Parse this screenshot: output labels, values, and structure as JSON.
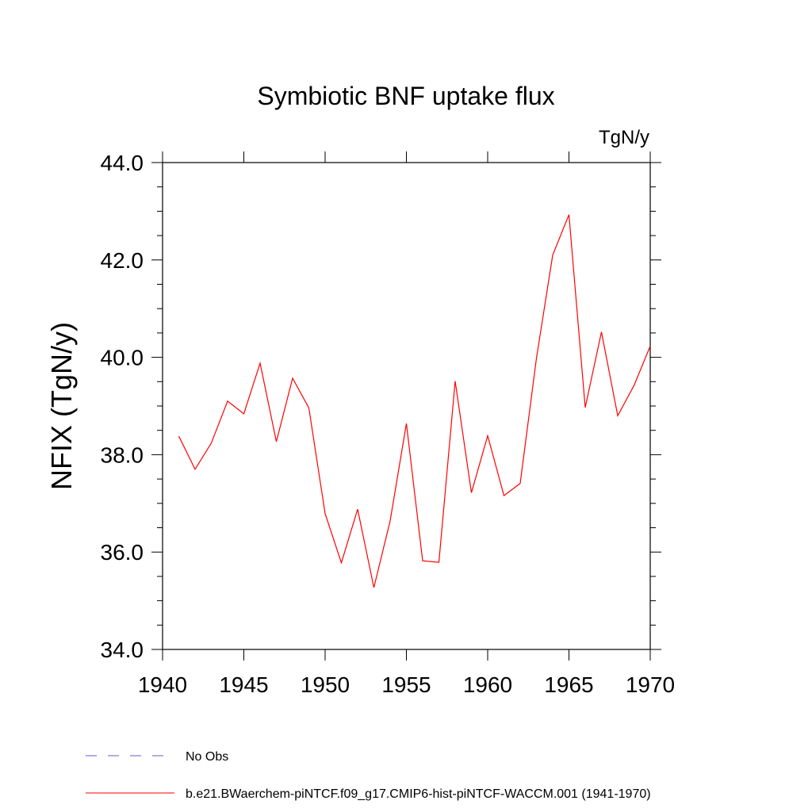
{
  "chart_data": {
    "type": "line",
    "title": "Symbiotic BNF uptake flux",
    "units": "TgN/y",
    "xlabel": "",
    "ylabel": "NFIX  (TgN/y)",
    "xlim": [
      1940,
      1970
    ],
    "ylim": [
      34.0,
      44.0
    ],
    "x_ticks": [
      1940,
      1945,
      1950,
      1955,
      1960,
      1965,
      1970
    ],
    "x_tick_labels": [
      "1940",
      "1945",
      "1950",
      "1955",
      "1960",
      "1965",
      "1970"
    ],
    "y_ticks": [
      34,
      36,
      38,
      40,
      42,
      44
    ],
    "y_tick_labels": [
      "34.0",
      "36.0",
      "38.0",
      "40.0",
      "42.0",
      "44.0"
    ],
    "grid": false,
    "legend_position": "bottom",
    "series": [
      {
        "name": "b.e21.BWaerchem-piNTCF.f09_g17.CMIP6-hist-piNTCF-WACCM.001 (1941-1970)",
        "color": "#ff0000",
        "style": "solid",
        "x": [
          1941,
          1942,
          1943,
          1944,
          1945,
          1946,
          1947,
          1948,
          1949,
          1950,
          1951,
          1952,
          1953,
          1954,
          1955,
          1956,
          1957,
          1958,
          1959,
          1960,
          1961,
          1962,
          1963,
          1964,
          1965,
          1966,
          1967,
          1968,
          1969,
          1970
        ],
        "y": [
          38.38,
          37.7,
          38.24,
          39.1,
          38.84,
          39.88,
          38.27,
          39.57,
          38.96,
          36.79,
          35.78,
          36.88,
          35.27,
          36.64,
          38.64,
          35.82,
          35.79,
          39.51,
          37.22,
          38.39,
          37.16,
          37.41,
          39.98,
          42.1,
          42.93,
          38.97,
          40.52,
          38.8,
          39.42,
          40.23
        ]
      }
    ],
    "legend": [
      {
        "label": "No Obs",
        "color": "#6a5acd",
        "style": "dashed"
      },
      {
        "label": "b.e21.BWaerchem-piNTCF.f09_g17.CMIP6-hist-piNTCF-WACCM.001 (1941-1970)",
        "color": "#ff0000",
        "style": "solid"
      }
    ]
  }
}
